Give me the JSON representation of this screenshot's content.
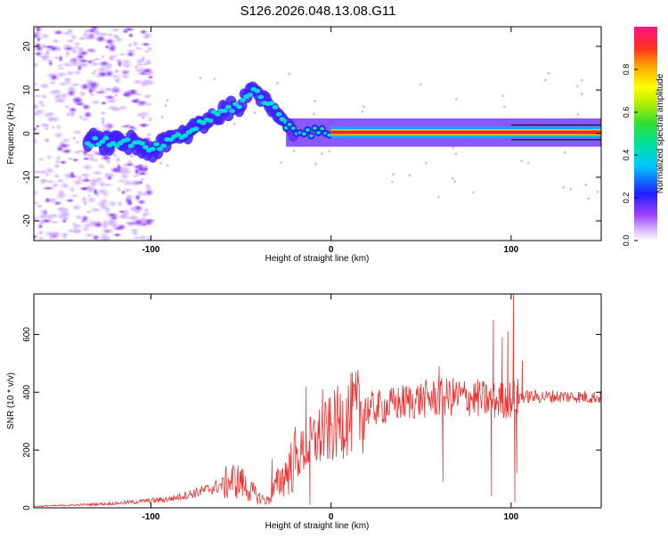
{
  "title": "S126.2026.048.13.08.G11",
  "chart_data": [
    {
      "type": "heatmap",
      "xlabel": "Height of straight line (km)",
      "ylabel": "Frequency (Hz)",
      "xlim": [
        -165,
        150
      ],
      "ylim": [
        -24.5,
        24.5
      ],
      "xticks": [
        -100,
        0,
        100
      ],
      "yticks": [
        -20,
        -10,
        0,
        10,
        20
      ],
      "colorbar": {
        "label": "Normalized spectral amplitude",
        "range": [
          0,
          1
        ],
        "ticks": [
          0.0,
          0.2,
          0.4,
          0.6,
          0.8
        ]
      },
      "ridge": [
        [
          -165,
          -1.5
        ],
        [
          -140,
          -2
        ],
        [
          -125,
          -2
        ],
        [
          -110,
          -2
        ],
        [
          -100,
          -4
        ],
        [
          -90,
          -2
        ],
        [
          -80,
          0
        ],
        [
          -70,
          3
        ],
        [
          -60,
          5
        ],
        [
          -50,
          7
        ],
        [
          -42,
          10
        ],
        [
          -35,
          7
        ],
        [
          -28,
          5
        ],
        [
          -25,
          2
        ],
        [
          -20,
          1
        ],
        [
          -10,
          0.3
        ],
        [
          0,
          0.3
        ],
        [
          50,
          0.3
        ],
        [
          100,
          0.3
        ],
        [
          150,
          0.3
        ]
      ]
    },
    {
      "type": "line",
      "xlabel": "Height of straight line (km)",
      "ylabel": "SNR (10 * v/v)",
      "xlim": [
        -165,
        150
      ],
      "ylim": [
        0,
        740
      ],
      "xticks": [
        -100,
        0,
        100
      ],
      "yticks": [
        0,
        200,
        400,
        600
      ],
      "series_color": "#ee3333",
      "envelope": [
        [
          -165,
          5
        ],
        [
          -140,
          10
        ],
        [
          -120,
          15
        ],
        [
          -100,
          25
        ],
        [
          -90,
          30
        ],
        [
          -80,
          45
        ],
        [
          -70,
          60
        ],
        [
          -60,
          80
        ],
        [
          -55,
          95
        ],
        [
          -50,
          90
        ],
        [
          -45,
          60
        ],
        [
          -40,
          35
        ],
        [
          -35,
          25
        ],
        [
          -30,
          80
        ],
        [
          -25,
          120
        ],
        [
          -20,
          160
        ],
        [
          -15,
          200
        ],
        [
          -10,
          230
        ],
        [
          -5,
          250
        ],
        [
          0,
          270
        ],
        [
          5,
          300
        ],
        [
          10,
          320
        ],
        [
          15,
          335
        ],
        [
          20,
          340
        ],
        [
          30,
          350
        ],
        [
          40,
          365
        ],
        [
          50,
          375
        ],
        [
          60,
          380
        ],
        [
          70,
          385
        ],
        [
          80,
          380
        ],
        [
          90,
          370
        ],
        [
          100,
          375
        ],
        [
          105,
          385
        ],
        [
          120,
          385
        ],
        [
          135,
          385
        ],
        [
          150,
          382
        ]
      ],
      "spikes": [
        [
          -50,
          130
        ],
        [
          -33,
          170
        ],
        [
          -20,
          280
        ],
        [
          -14,
          420
        ],
        [
          -5,
          410
        ],
        [
          -12,
          10
        ],
        [
          60,
          490
        ],
        [
          62,
          90
        ],
        [
          90,
          650
        ],
        [
          89,
          40
        ],
        [
          95,
          590
        ],
        [
          98,
          610
        ],
        [
          101,
          740
        ],
        [
          102,
          20
        ],
        [
          103,
          120
        ],
        [
          106,
          510
        ]
      ]
    }
  ]
}
